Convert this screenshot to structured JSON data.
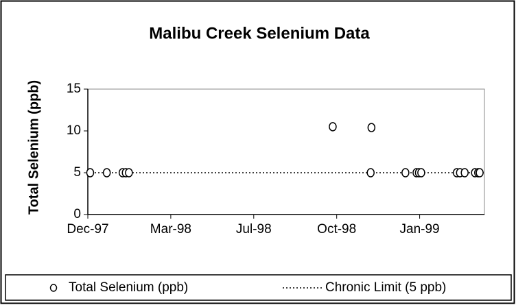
{
  "chart_data": {
    "type": "scatter",
    "title": "Malibu Creek Selenium Data",
    "y_label": "Total Selenium (ppb)",
    "series": [
      {
        "name": "Total Selenium (ppb)",
        "color": "#000000",
        "x": [
          35773,
          35794,
          35814,
          35818,
          35822,
          36080,
          36129,
          36128,
          36172,
          36186,
          36189,
          36192,
          36237,
          36241,
          36247,
          36260,
          36264,
          36266
        ],
        "values": [
          5,
          5,
          5,
          5,
          5,
          10.5,
          10.4,
          5,
          5,
          5,
          5,
          5,
          5,
          5,
          5,
          5,
          5,
          5
        ]
      }
    ],
    "reference_line": {
      "name": "Chronic Limit (5 ppb)",
      "value": 5,
      "color": "#000000"
    },
    "xlim": [
      35770,
      36272
    ],
    "xticks": [
      {
        "value": 35770,
        "label": "Dec-97"
      },
      {
        "value": 35875,
        "label": "Mar-98"
      },
      {
        "value": 35980,
        "label": "Jul-98"
      },
      {
        "value": 36085,
        "label": "Oct-98"
      },
      {
        "value": 36190,
        "label": "Jan-99"
      }
    ],
    "ylim": [
      0,
      15
    ],
    "yticks": [
      0,
      5,
      10,
      15
    ],
    "legend": "bottom"
  }
}
